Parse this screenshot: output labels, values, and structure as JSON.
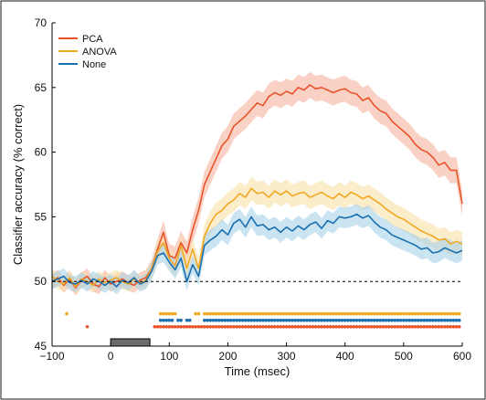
{
  "chart_data": {
    "type": "line",
    "xlabel": "Time (msec)",
    "ylabel": "Classifier accuracy (% correct)",
    "xlim": [
      -100,
      600
    ],
    "ylim": [
      45,
      70
    ],
    "xticks": [
      -100,
      0,
      100,
      200,
      300,
      400,
      500,
      600
    ],
    "yticks": [
      45,
      50,
      55,
      60,
      65,
      70
    ],
    "chance_level": 50,
    "stimulus_bar": [
      0,
      67
    ],
    "legend_position": "top-left",
    "series": [
      {
        "name": "PCA",
        "color": "#e8532a",
        "band_color": "#f6b49f",
        "x": [
          -100,
          -90,
          -80,
          -70,
          -60,
          -50,
          -40,
          -30,
          -20,
          -10,
          0,
          10,
          20,
          30,
          40,
          50,
          60,
          70,
          80,
          90,
          100,
          110,
          120,
          130,
          140,
          150,
          160,
          170,
          180,
          190,
          200,
          210,
          220,
          230,
          240,
          250,
          260,
          270,
          280,
          290,
          300,
          310,
          320,
          330,
          340,
          350,
          360,
          370,
          380,
          390,
          400,
          410,
          420,
          430,
          440,
          450,
          460,
          470,
          480,
          490,
          500,
          510,
          520,
          530,
          540,
          550,
          560,
          570,
          580,
          590,
          600
        ],
        "y": [
          50.0,
          50.3,
          49.7,
          50.2,
          49.5,
          50.1,
          50.4,
          49.8,
          49.6,
          50.3,
          49.8,
          50.0,
          50.2,
          49.9,
          49.7,
          50.1,
          50.3,
          51.0,
          52.5,
          53.8,
          52.0,
          51.8,
          53.0,
          52.2,
          54.0,
          55.5,
          57.5,
          58.5,
          59.5,
          60.5,
          61.0,
          62.0,
          62.4,
          62.8,
          63.3,
          63.8,
          63.6,
          64.3,
          64.6,
          64.4,
          64.7,
          64.5,
          65.0,
          64.8,
          65.2,
          64.9,
          65.0,
          64.8,
          64.6,
          64.8,
          64.9,
          64.6,
          64.5,
          64.0,
          64.2,
          63.6,
          63.2,
          63.0,
          62.4,
          62.0,
          61.6,
          61.2,
          60.6,
          60.2,
          60.0,
          59.6,
          59.0,
          59.2,
          58.6,
          58.6,
          56.0
        ],
        "err": [
          0.6,
          0.6,
          0.6,
          0.6,
          0.6,
          0.6,
          0.6,
          0.6,
          0.6,
          0.6,
          0.6,
          0.6,
          0.6,
          0.6,
          0.6,
          0.6,
          0.6,
          0.7,
          0.8,
          0.9,
          0.9,
          0.9,
          0.9,
          0.9,
          1.0,
          1.0,
          1.0,
          1.0,
          1.0,
          1.0,
          1.0,
          1.0,
          1.0,
          1.0,
          1.0,
          1.0,
          1.0,
          1.0,
          1.0,
          1.0,
          1.0,
          1.0,
          1.0,
          1.0,
          1.0,
          1.0,
          1.0,
          1.0,
          1.0,
          1.0,
          1.0,
          1.0,
          1.0,
          1.0,
          1.0,
          1.0,
          1.0,
          1.0,
          1.0,
          1.0,
          1.0,
          1.0,
          1.0,
          1.0,
          1.0,
          1.0,
          1.0,
          1.0,
          1.0,
          1.0,
          1.0
        ]
      },
      {
        "name": "ANOVA",
        "color": "#f0a823",
        "band_color": "#f8e0a6",
        "x": [
          -100,
          -90,
          -80,
          -70,
          -60,
          -50,
          -40,
          -30,
          -20,
          -10,
          0,
          10,
          20,
          30,
          40,
          50,
          60,
          70,
          80,
          90,
          100,
          110,
          120,
          130,
          140,
          150,
          160,
          170,
          180,
          190,
          200,
          210,
          220,
          230,
          240,
          250,
          260,
          270,
          280,
          290,
          300,
          310,
          320,
          330,
          340,
          350,
          360,
          370,
          380,
          390,
          400,
          410,
          420,
          430,
          440,
          450,
          460,
          470,
          480,
          490,
          500,
          510,
          520,
          530,
          540,
          550,
          560,
          570,
          580,
          590,
          600
        ],
        "y": [
          50.4,
          50.0,
          49.8,
          50.3,
          49.6,
          50.2,
          50.0,
          49.7,
          50.2,
          49.9,
          50.1,
          50.3,
          50.0,
          49.8,
          50.2,
          49.9,
          50.1,
          51.0,
          52.3,
          53.0,
          51.8,
          51.2,
          52.8,
          51.0,
          52.5,
          51.0,
          53.5,
          54.5,
          55.2,
          55.5,
          56.0,
          56.3,
          56.8,
          56.5,
          57.2,
          56.8,
          56.9,
          56.5,
          57.0,
          56.7,
          57.0,
          56.6,
          56.8,
          56.9,
          56.5,
          56.7,
          56.9,
          56.6,
          56.4,
          56.8,
          56.5,
          56.9,
          56.7,
          56.4,
          56.6,
          56.3,
          56.0,
          55.6,
          55.3,
          55.0,
          54.8,
          54.5,
          54.2,
          53.9,
          53.7,
          53.5,
          53.2,
          53.3,
          52.9,
          53.1,
          52.9
        ],
        "err": [
          0.6,
          0.6,
          0.6,
          0.6,
          0.6,
          0.6,
          0.6,
          0.6,
          0.6,
          0.6,
          0.6,
          0.6,
          0.6,
          0.6,
          0.6,
          0.6,
          0.6,
          0.7,
          0.8,
          0.8,
          0.8,
          0.8,
          0.8,
          0.8,
          0.8,
          0.8,
          0.9,
          0.9,
          0.9,
          0.9,
          0.9,
          0.9,
          0.9,
          0.9,
          0.9,
          0.9,
          0.9,
          0.9,
          0.9,
          0.9,
          0.9,
          0.9,
          0.9,
          0.9,
          0.9,
          0.9,
          0.9,
          0.9,
          0.9,
          0.9,
          0.9,
          0.9,
          0.9,
          0.9,
          0.9,
          0.9,
          0.9,
          0.9,
          0.9,
          0.9,
          0.9,
          0.9,
          0.9,
          0.9,
          0.9,
          0.9,
          0.9,
          0.9,
          0.9,
          0.9,
          0.9
        ]
      },
      {
        "name": "None",
        "color": "#1a6fb0",
        "band_color": "#a9d2ea",
        "x": [
          -100,
          -90,
          -80,
          -70,
          -60,
          -50,
          -40,
          -30,
          -20,
          -10,
          0,
          10,
          20,
          30,
          40,
          50,
          60,
          70,
          80,
          90,
          100,
          110,
          120,
          130,
          140,
          150,
          160,
          170,
          180,
          190,
          200,
          210,
          220,
          230,
          240,
          250,
          260,
          270,
          280,
          290,
          300,
          310,
          320,
          330,
          340,
          350,
          360,
          370,
          380,
          390,
          400,
          410,
          420,
          430,
          440,
          450,
          460,
          470,
          480,
          490,
          500,
          510,
          520,
          530,
          540,
          550,
          560,
          570,
          580,
          590,
          600
        ],
        "y": [
          50.0,
          50.2,
          50.4,
          49.9,
          49.8,
          50.1,
          49.8,
          50.2,
          50.0,
          49.7,
          50.0,
          49.6,
          50.1,
          49.9,
          50.3,
          49.8,
          50.0,
          50.8,
          52.0,
          52.2,
          51.5,
          50.9,
          51.8,
          50.0,
          51.3,
          50.4,
          52.8,
          53.2,
          53.5,
          54.0,
          53.6,
          54.5,
          54.8,
          54.2,
          55.0,
          54.3,
          54.4,
          54.0,
          54.2,
          53.8,
          54.2,
          53.9,
          54.3,
          54.0,
          54.4,
          54.6,
          54.1,
          54.7,
          54.5,
          55.0,
          54.9,
          55.0,
          55.2,
          54.9,
          55.1,
          54.6,
          54.2,
          54.0,
          53.6,
          53.4,
          53.2,
          53.0,
          52.8,
          52.5,
          52.6,
          52.2,
          52.3,
          52.6,
          52.4,
          52.2,
          52.4
        ],
        "err": [
          0.6,
          0.6,
          0.6,
          0.6,
          0.6,
          0.6,
          0.6,
          0.6,
          0.6,
          0.6,
          0.6,
          0.6,
          0.6,
          0.6,
          0.6,
          0.6,
          0.6,
          0.7,
          0.7,
          0.7,
          0.7,
          0.7,
          0.7,
          0.7,
          0.7,
          0.7,
          0.8,
          0.8,
          0.8,
          0.8,
          0.8,
          0.8,
          0.8,
          0.8,
          0.8,
          0.8,
          0.8,
          0.8,
          0.8,
          0.8,
          0.8,
          0.8,
          0.8,
          0.8,
          0.8,
          0.8,
          0.8,
          0.8,
          0.8,
          0.8,
          0.8,
          0.8,
          0.8,
          0.8,
          0.8,
          0.8,
          0.8,
          0.8,
          0.8,
          0.8,
          0.8,
          0.8,
          0.8,
          0.8,
          0.8,
          0.8,
          0.8,
          0.8,
          0.8,
          0.8,
          0.8
        ]
      }
    ],
    "significance_markers": [
      {
        "series": "ANOVA",
        "level": 47.5,
        "points": [
          -75
        ],
        "intervals": [
          [
            85,
            110
          ],
          [
            145,
            150
          ],
          [
            160,
            597
          ]
        ]
      },
      {
        "series": "None",
        "level": 47.0,
        "points": [],
        "intervals": [
          [
            85,
            105
          ],
          [
            115,
            120
          ],
          [
            130,
            135
          ],
          [
            160,
            597
          ]
        ]
      },
      {
        "series": "PCA",
        "level": 46.5,
        "points": [
          -40
        ],
        "intervals": [
          [
            75,
            125
          ],
          [
            130,
            597
          ]
        ]
      }
    ]
  }
}
